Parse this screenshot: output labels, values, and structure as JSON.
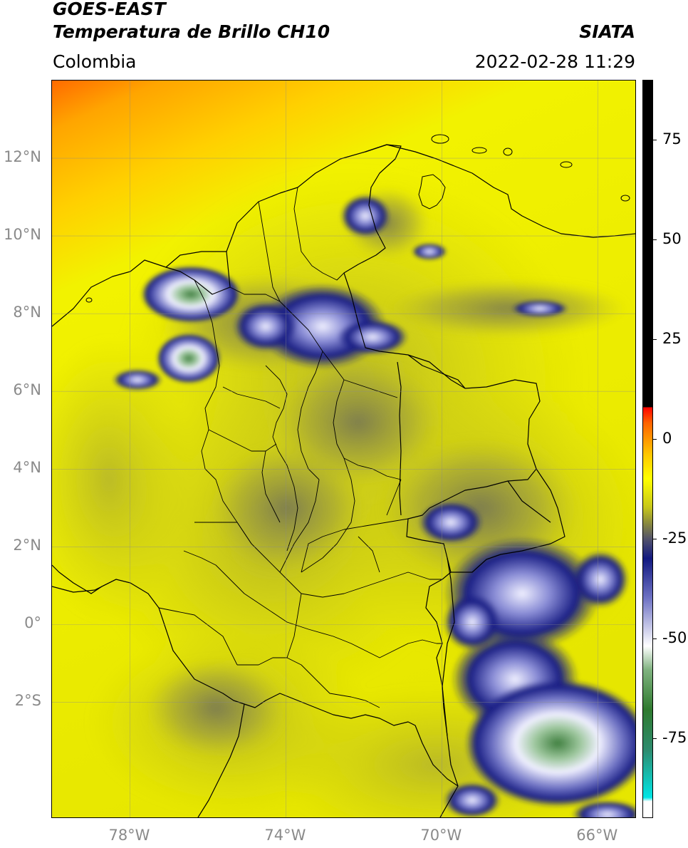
{
  "header": {
    "satellite": "GOES-EAST",
    "product": "Temperatura de Brillo CH10",
    "agency": "SIATA",
    "region": "Colombia",
    "datetime": "2022-02-28 11:29"
  },
  "map": {
    "extent": {
      "lon_min": -80.0,
      "lon_max": -65.0,
      "lat_min": -5.0,
      "lat_max": 14.0
    },
    "lat_ticks": [
      {
        "value": 12,
        "label": "12°N"
      },
      {
        "value": 10,
        "label": "10°N"
      },
      {
        "value": 8,
        "label": "8°N"
      },
      {
        "value": 6,
        "label": "6°N"
      },
      {
        "value": 4,
        "label": "4°N"
      },
      {
        "value": 2,
        "label": "2°N"
      },
      {
        "value": 0,
        "label": "0°"
      },
      {
        "value": -2,
        "label": "2°S"
      }
    ],
    "lon_ticks": [
      {
        "value": -78,
        "label": "78°W"
      },
      {
        "value": -74,
        "label": "74°W"
      },
      {
        "value": -70,
        "label": "70°W"
      },
      {
        "value": -66,
        "label": "66°W"
      }
    ],
    "gridlines": true
  },
  "colorbar": {
    "vmin": -95,
    "vmax": 90,
    "ticks": [
      {
        "value": 75,
        "label": "75"
      },
      {
        "value": 50,
        "label": "50"
      },
      {
        "value": 25,
        "label": "25"
      },
      {
        "value": 0,
        "label": "0"
      },
      {
        "value": -25,
        "label": "-25"
      },
      {
        "value": -50,
        "label": "-50"
      },
      {
        "value": -75,
        "label": "-75"
      }
    ],
    "stops": [
      {
        "value": -95,
        "color": "#ffffff"
      },
      {
        "value": -91,
        "color": "#ffffff"
      },
      {
        "value": -90,
        "color": "#00e5e5"
      },
      {
        "value": -78,
        "color": "#2e8b6e"
      },
      {
        "value": -68,
        "color": "#2f7a2f"
      },
      {
        "value": -58,
        "color": "#7fb27f"
      },
      {
        "value": -52,
        "color": "#ffffff"
      },
      {
        "value": -40,
        "color": "#6f73c4"
      },
      {
        "value": -30,
        "color": "#121980"
      },
      {
        "value": -25,
        "color": "#54546a"
      },
      {
        "value": -21,
        "color": "#8c8c3c"
      },
      {
        "value": -17,
        "color": "#c8c81a"
      },
      {
        "value": -10,
        "color": "#ffff00"
      },
      {
        "value": -4,
        "color": "#ffc800"
      },
      {
        "value": 4,
        "color": "#ff6400"
      },
      {
        "value": 8,
        "color": "#ff0000"
      },
      {
        "value": 8.01,
        "color": "#000000"
      },
      {
        "value": 90,
        "color": "#000000"
      }
    ]
  },
  "field_colors": {
    "cold_top_green": "#3f7f3f",
    "cloud_white": "#f0f0ff",
    "cloud_blue": "#1a1f85",
    "cloud_gray": "#6b6b5a",
    "moist_olive": "#b5b52a",
    "land_yellow": "#d8d81c",
    "dry_yellow": "#f2f200",
    "warm_orange": "#ffa500",
    "hot_orange": "#ff6a00"
  }
}
